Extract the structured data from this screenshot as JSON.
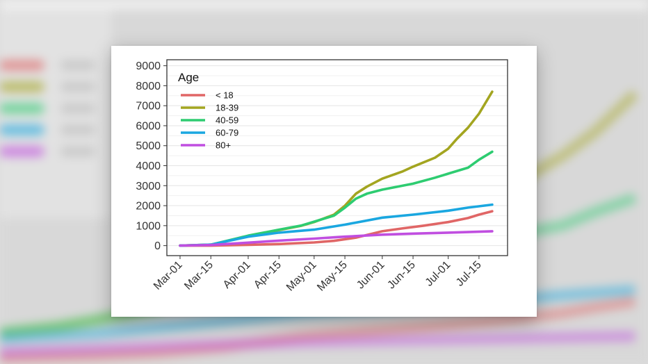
{
  "chart_data": {
    "type": "line",
    "legend": {
      "title": "Age",
      "position": "top-left-inside"
    },
    "x_ticks": [
      "Mar-01",
      "Mar-15",
      "Apr-01",
      "Apr-15",
      "May-01",
      "May-15",
      "Jun-01",
      "Jun-15",
      "Jul-01",
      "Jul-15"
    ],
    "y_ticks": [
      "0",
      "1000",
      "2000",
      "3000",
      "4000",
      "5000",
      "6000",
      "7000",
      "8000",
      "9000"
    ],
    "xlim": [
      "2020-02-24",
      "2020-07-28"
    ],
    "ylim": [
      -500,
      9300
    ],
    "grid": "horizontal",
    "series": [
      {
        "name": "< 18",
        "color": "#e06666",
        "points": [
          [
            "2020-03-01",
            0
          ],
          [
            "2020-03-15",
            0
          ],
          [
            "2020-04-01",
            40
          ],
          [
            "2020-04-15",
            80
          ],
          [
            "2020-05-01",
            160
          ],
          [
            "2020-05-10",
            240
          ],
          [
            "2020-05-20",
            400
          ],
          [
            "2020-06-01",
            720
          ],
          [
            "2020-06-10",
            860
          ],
          [
            "2020-06-20",
            1000
          ],
          [
            "2020-07-01",
            1180
          ],
          [
            "2020-07-10",
            1380
          ],
          [
            "2020-07-15",
            1550
          ],
          [
            "2020-07-21",
            1720
          ]
        ]
      },
      {
        "name": "18-39",
        "color": "#a3a520",
        "points": [
          [
            "2020-03-01",
            0
          ],
          [
            "2020-03-15",
            50
          ],
          [
            "2020-03-25",
            300
          ],
          [
            "2020-04-01",
            480
          ],
          [
            "2020-04-15",
            780
          ],
          [
            "2020-04-25",
            990
          ],
          [
            "2020-05-01",
            1180
          ],
          [
            "2020-05-10",
            1550
          ],
          [
            "2020-05-15",
            2000
          ],
          [
            "2020-05-20",
            2600
          ],
          [
            "2020-05-25",
            2950
          ],
          [
            "2020-06-01",
            3350
          ],
          [
            "2020-06-10",
            3700
          ],
          [
            "2020-06-15",
            3950
          ],
          [
            "2020-06-25",
            4400
          ],
          [
            "2020-07-01",
            4850
          ],
          [
            "2020-07-05",
            5350
          ],
          [
            "2020-07-10",
            5900
          ],
          [
            "2020-07-15",
            6600
          ],
          [
            "2020-07-21",
            7700
          ]
        ]
      },
      {
        "name": "40-59",
        "color": "#2ecc71",
        "points": [
          [
            "2020-03-01",
            0
          ],
          [
            "2020-03-15",
            50
          ],
          [
            "2020-04-01",
            500
          ],
          [
            "2020-04-15",
            800
          ],
          [
            "2020-04-25",
            1000
          ],
          [
            "2020-05-01",
            1200
          ],
          [
            "2020-05-10",
            1500
          ],
          [
            "2020-05-15",
            1900
          ],
          [
            "2020-05-20",
            2350
          ],
          [
            "2020-05-25",
            2600
          ],
          [
            "2020-06-01",
            2800
          ],
          [
            "2020-06-15",
            3100
          ],
          [
            "2020-06-25",
            3400
          ],
          [
            "2020-07-01",
            3600
          ],
          [
            "2020-07-10",
            3900
          ],
          [
            "2020-07-15",
            4300
          ],
          [
            "2020-07-21",
            4700
          ]
        ]
      },
      {
        "name": "60-79",
        "color": "#1aa7e0",
        "points": [
          [
            "2020-03-01",
            0
          ],
          [
            "2020-03-15",
            50
          ],
          [
            "2020-04-01",
            450
          ],
          [
            "2020-04-15",
            650
          ],
          [
            "2020-05-01",
            800
          ],
          [
            "2020-05-15",
            1050
          ],
          [
            "2020-06-01",
            1400
          ],
          [
            "2020-06-15",
            1550
          ],
          [
            "2020-07-01",
            1750
          ],
          [
            "2020-07-10",
            1900
          ],
          [
            "2020-07-21",
            2050
          ]
        ]
      },
      {
        "name": "80+",
        "color": "#c04ee0",
        "points": [
          [
            "2020-03-01",
            0
          ],
          [
            "2020-03-15",
            30
          ],
          [
            "2020-04-01",
            150
          ],
          [
            "2020-04-15",
            250
          ],
          [
            "2020-05-01",
            350
          ],
          [
            "2020-05-15",
            450
          ],
          [
            "2020-06-01",
            550
          ],
          [
            "2020-06-15",
            600
          ],
          [
            "2020-07-01",
            650
          ],
          [
            "2020-07-21",
            720
          ]
        ]
      }
    ]
  }
}
